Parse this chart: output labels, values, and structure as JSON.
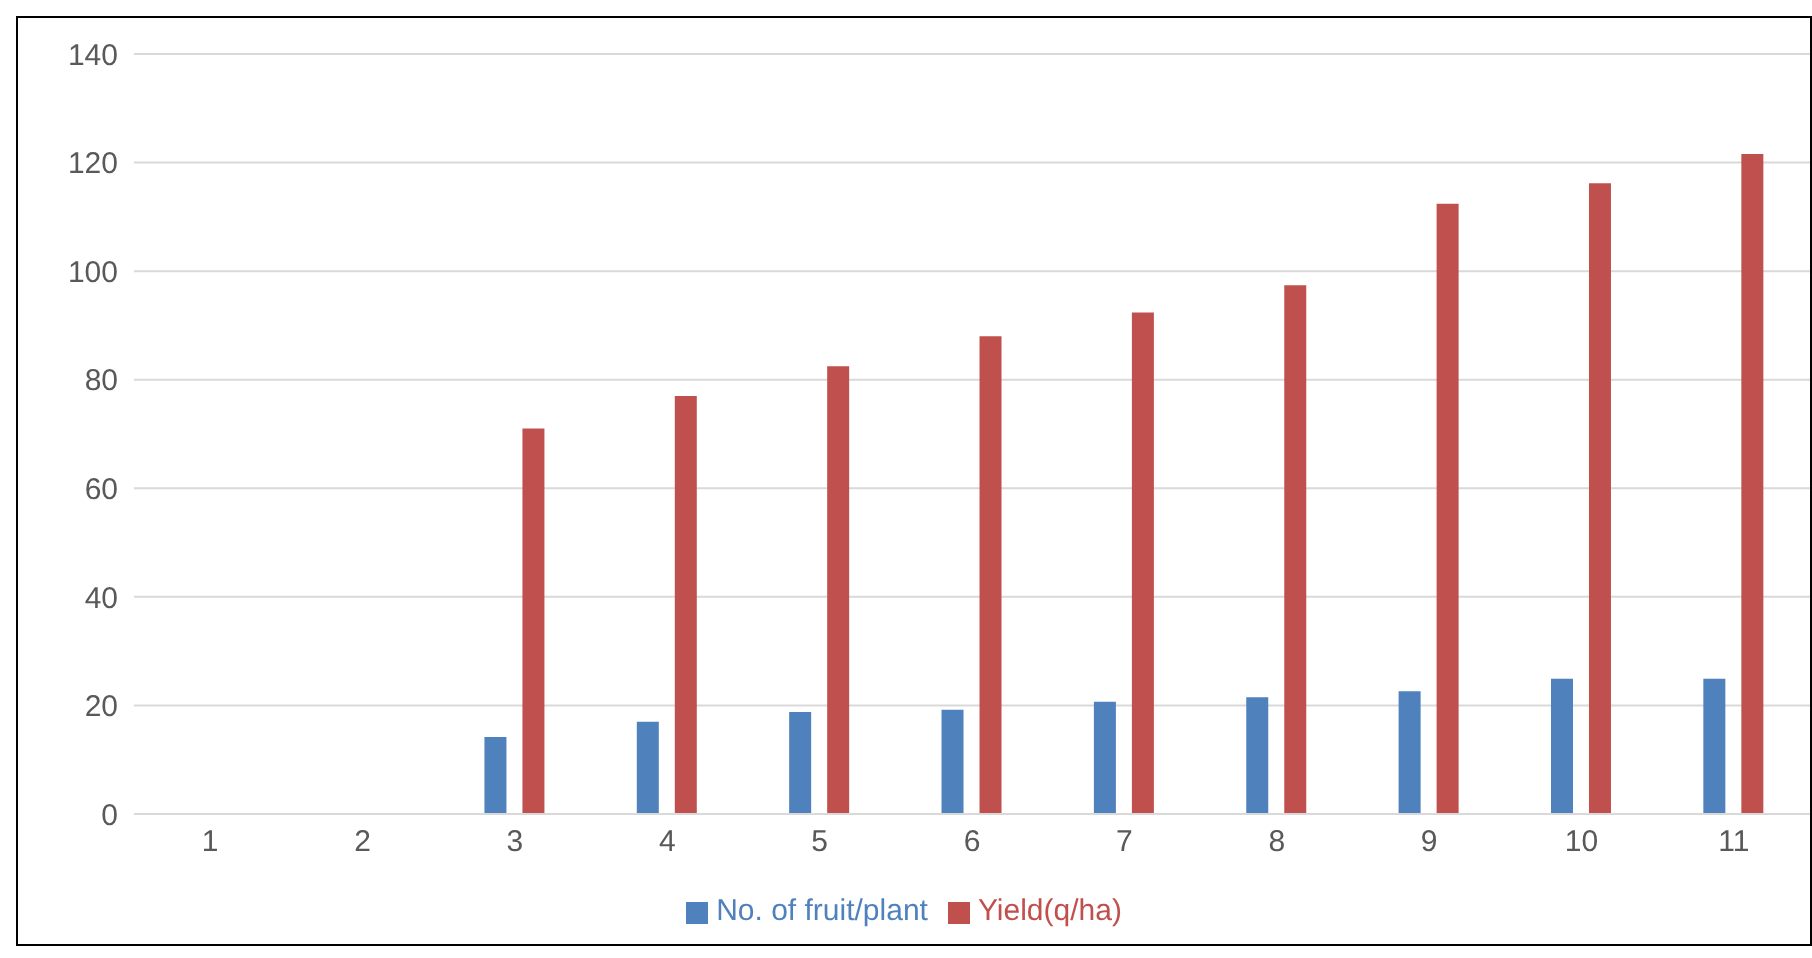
{
  "chart_data": {
    "type": "bar",
    "categories": [
      "1",
      "2",
      "3",
      "4",
      "5",
      "6",
      "7",
      "8",
      "9",
      "10",
      "11"
    ],
    "series": [
      {
        "name": "No. of fruit/plant",
        "color": "#4f81bd",
        "values": [
          null,
          null,
          14.2,
          17,
          18.8,
          19.2,
          20.7,
          21.5,
          22.6,
          24.9,
          24.9
        ]
      },
      {
        "name": "Yield(q/ha)",
        "color": "#c0504d",
        "values": [
          null,
          null,
          71,
          77,
          82.5,
          88,
          92.4,
          97.4,
          112.4,
          116.2,
          121.6
        ]
      }
    ],
    "ylim": [
      0,
      140
    ],
    "yticks": [
      0,
      20,
      40,
      60,
      80,
      100,
      120,
      140
    ],
    "grid": "y",
    "legend": "bottom"
  }
}
